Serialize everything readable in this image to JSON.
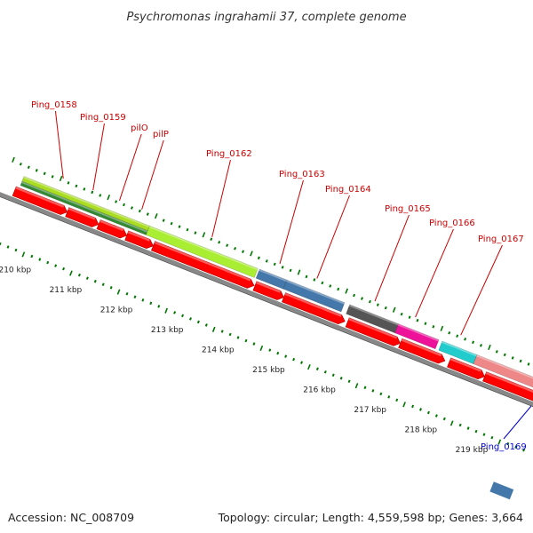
{
  "title": "Psychromonas ingrahamii 37, complete genome",
  "footer": {
    "accession": "Accession: NC_008709",
    "summary": "Topology: circular; Length: 4,559,598 bp; Genes: 3,664"
  },
  "colors": {
    "backbone": "#888888",
    "label_top": "#cc0000",
    "label_bottom": "#0000cc",
    "tick": "#007700",
    "cds": "#ff0000"
  },
  "scale_ticks": [
    "210 kbp",
    "211 kbp",
    "212 kbp",
    "213 kbp",
    "214 kbp",
    "215 kbp",
    "216 kbp",
    "217 kbp",
    "218 kbp",
    "219 kbp"
  ],
  "genes": [
    {
      "label": "Ping_0158",
      "feature_color": "#aadd22",
      "label_color": "red"
    },
    {
      "label": "Ping_0159",
      "feature_color": "#338833",
      "label_color": "red"
    },
    {
      "label": "pilO",
      "feature_color": "#338833",
      "label_color": "red"
    },
    {
      "label": "pilP",
      "feature_color": "#338833",
      "label_color": "red"
    },
    {
      "label": "Ping_0162",
      "feature_color": "#aaee33",
      "label_color": "red"
    },
    {
      "label": "Ping_0163",
      "feature_color": "#4477aa",
      "label_color": "red"
    },
    {
      "label": "Ping_0164",
      "feature_color": "#4477aa",
      "label_color": "red"
    },
    {
      "label": "Ping_0165",
      "feature_color": "#555555",
      "label_color": "red"
    },
    {
      "label": "Ping_0166",
      "feature_color": "#ee1199",
      "label_color": "red"
    },
    {
      "label": "Ping_0167",
      "feature_color": "#22cccc",
      "label_color": "red"
    },
    {
      "label": "Ping_0169",
      "feature_color": "#4477aa",
      "label_color": "blue"
    }
  ]
}
